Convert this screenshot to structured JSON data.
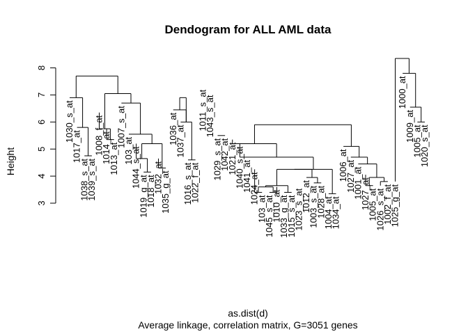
{
  "chart_data": {
    "type": "dendrogram",
    "title": "Dendogram for ALL AML data",
    "xlabel": "as.dist(d)",
    "subtitle": "Average linkage, correlation matrix, G=3051 genes",
    "ylabel": "Height",
    "ylim": [
      3,
      8.4
    ],
    "yticks": [
      3,
      4,
      5,
      6,
      7,
      8
    ],
    "leaves": [
      {
        "label": "1030_s_at",
        "height": 6.9
      },
      {
        "label": "1017_at",
        "height": 5.8
      },
      {
        "label": "1038_s_at",
        "height": 4.75
      },
      {
        "label": "1039_s_at",
        "height": 4.75
      },
      {
        "label": "1008_f_at",
        "height": 6.35
      },
      {
        "label": "1014_at",
        "height": 5.75
      },
      {
        "label": "1013_at",
        "height": 5.35
      },
      {
        "label": "1007_s_at",
        "height": 6.7
      },
      {
        "label": "103_at",
        "height": 5.55
      },
      {
        "label": "1044_s_at",
        "height": 5.2
      },
      {
        "label": "1019_g_at",
        "height": 4.15
      },
      {
        "label": "1018_at",
        "height": 4.15
      },
      {
        "label": "1032_at",
        "height": 4.65
      },
      {
        "label": "1035_g_at",
        "height": 4.3
      },
      {
        "label": "1036_at",
        "height": 6.45
      },
      {
        "label": "1037_at",
        "height": 6.0
      },
      {
        "label": "1016_s_at",
        "height": 4.6
      },
      {
        "label": "1022_f_at",
        "height": 4.6
      },
      {
        "label": "1011_s_at",
        "height": 7.3
      },
      {
        "label": "1043_s_at",
        "height": 7.1
      },
      {
        "label": "1029_s_at",
        "height": 5.5
      },
      {
        "label": "1042_at",
        "height": 5.5
      },
      {
        "label": "1021_at",
        "height": 5.35
      },
      {
        "label": "1040_s_at",
        "height": 5.2
      },
      {
        "label": "1041_at",
        "height": 4.7
      },
      {
        "label": "1024_at",
        "height": 4.25
      },
      {
        "label": "103_at",
        "height": 3.4
      },
      {
        "label": "1045_s_at",
        "height": 3.4
      },
      {
        "label": "1010_at",
        "height": 3.6
      },
      {
        "label": "1033_g_at",
        "height": 3.4
      },
      {
        "label": "1015_s_at",
        "height": 3.4
      },
      {
        "label": "1023_s_at",
        "height": 3.65
      },
      {
        "label": "1012_at",
        "height": 3.95
      },
      {
        "label": "1003_s_at",
        "height": 3.75
      },
      {
        "label": "1028_at",
        "height": 3.75
      },
      {
        "label": "1004_at",
        "height": 3.35
      },
      {
        "label": "1034_at",
        "height": 3.35
      },
      {
        "label": "1006_at",
        "height": 5.1
      },
      {
        "label": "1027_at",
        "height": 4.7
      },
      {
        "label": "1001_at",
        "height": 4.45
      },
      {
        "label": "1027_at",
        "height": 4.05
      },
      {
        "label": "1005_at",
        "height": 3.65
      },
      {
        "label": "1026_s_at",
        "height": 3.65
      },
      {
        "label": "1002_f_at",
        "height": 3.8
      },
      {
        "label": "1025_g_at",
        "height": 3.8
      },
      {
        "label": "1000_at",
        "height": 7.8
      },
      {
        "label": "1009_at",
        "height": 6.55
      },
      {
        "label": "1005_at",
        "height": 6.0
      },
      {
        "label": "1020_s_at",
        "height": 6.0
      }
    ],
    "merges": [
      [
        -3,
        -4,
        4.75
      ],
      [
        -2,
        1,
        5.8
      ],
      [
        -1,
        2,
        6.9
      ],
      [
        -6,
        -7,
        5.35
      ],
      [
        -5,
        4,
        5.75
      ],
      [
        -11,
        -12,
        4.15
      ],
      [
        -10,
        6,
        4.65
      ],
      [
        -13,
        -14,
        4.3
      ],
      [
        7,
        8,
        5.2
      ],
      [
        -9,
        9,
        5.55
      ],
      [
        -8,
        10,
        6.7
      ],
      [
        5,
        11,
        7.05
      ],
      [
        3,
        12,
        7.7
      ],
      [
        -17,
        -18,
        4.6
      ],
      [
        -16,
        14,
        6.0
      ],
      [
        -15,
        15,
        6.45
      ],
      [
        16,
        15,
        6.9
      ],
      [
        -26,
        -27,
        3.4
      ],
      [
        -28,
        -29,
        3.4
      ],
      [
        18,
        19,
        3.6
      ],
      [
        -30,
        -31,
        3.4
      ],
      [
        20,
        21,
        3.65
      ],
      [
        -34,
        -35,
        3.75
      ],
      [
        -33,
        23,
        3.95
      ],
      [
        22,
        24,
        4.25
      ],
      [
        -36,
        -37,
        3.35
      ],
      [
        25,
        26,
        4.25
      ],
      [
        -24,
        27,
        4.7
      ],
      [
        -23,
        28,
        5.2
      ],
      [
        -21,
        -22,
        5.5
      ],
      [
        -41,
        -42,
        3.65
      ],
      [
        -43,
        -44,
        3.8
      ],
      [
        31,
        32,
        3.95
      ],
      [
        -40,
        33,
        4.45
      ],
      [
        -39,
        34,
        4.7
      ],
      [
        -38,
        35,
        5.1
      ],
      [
        29,
        36,
        5.9
      ],
      [
        -48,
        -49,
        6.0
      ],
      [
        -47,
        38,
        6.55
      ],
      [
        -46,
        39,
        7.8
      ],
      [
        -45,
        40,
        8.35
      ]
    ]
  }
}
